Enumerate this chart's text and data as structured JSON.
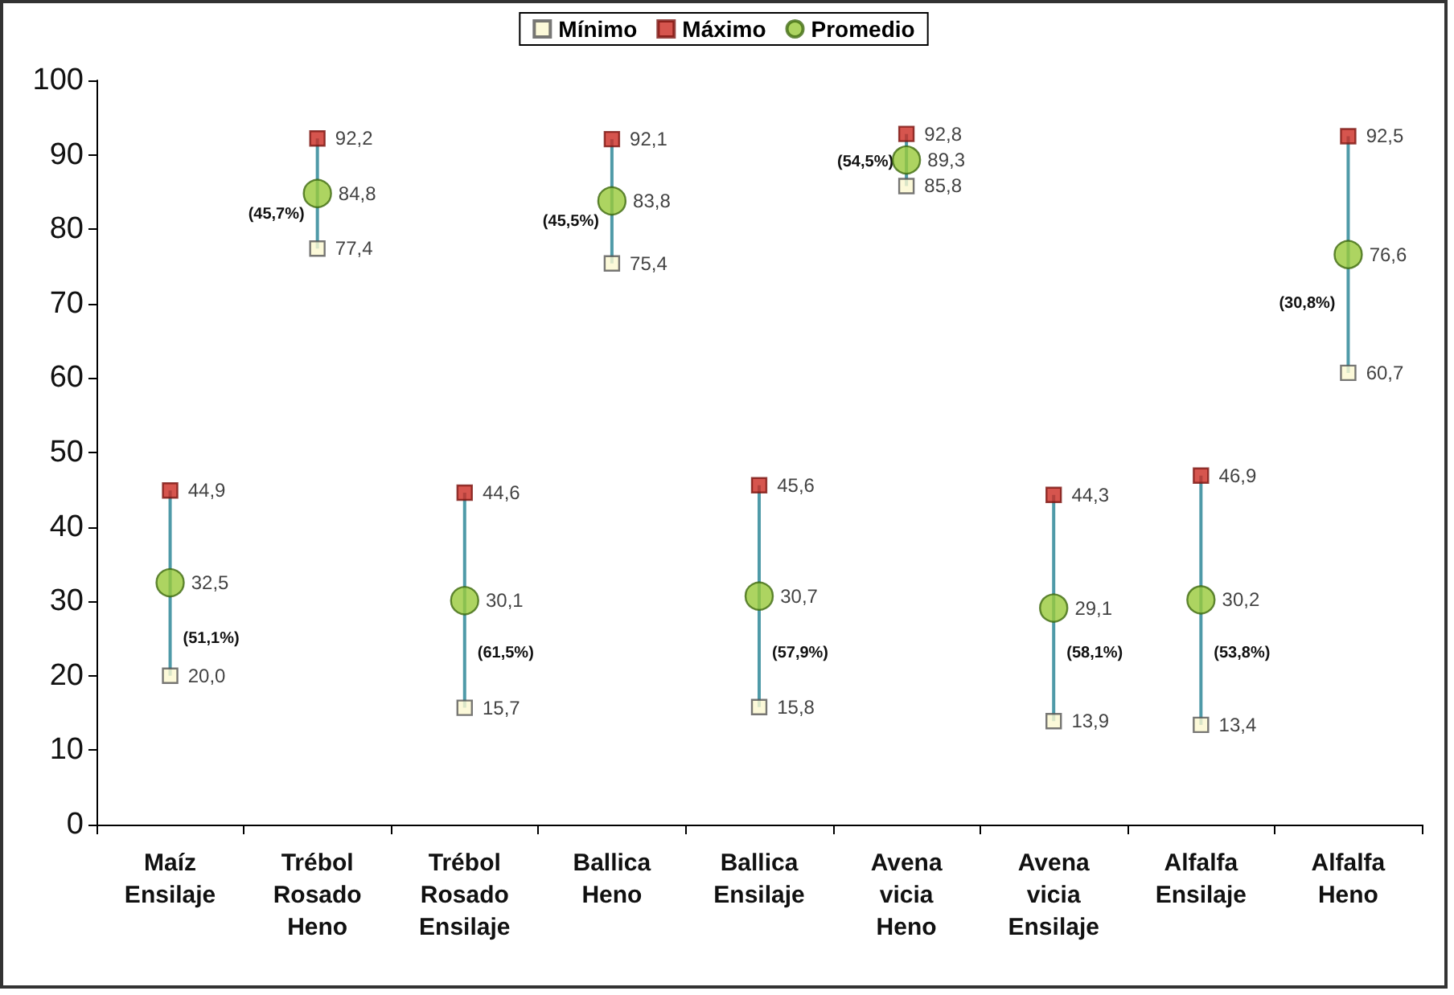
{
  "chart_data": {
    "type": "scatter",
    "categories": [
      "Maíz Ensilaje",
      "Trébol Rosado Heno",
      "Trébol Rosado Ensilaje",
      "Ballica Heno",
      "Ballica Ensilaje",
      "Avena vicia Heno",
      "Avena vicia Ensilaje",
      "Alfalfa Ensilaje",
      "Alfalfa Heno"
    ],
    "series": [
      {
        "type": "line",
        "color": "#4f9aa8",
        "marker": "none",
        "x": [
          "Maíz Ensilaje",
          "Maíz Ensilaje"
        ],
        "values": [
          20.0,
          44.9
        ]
      },
      {
        "type": "line",
        "color": "#4f9aa8",
        "marker": "none",
        "x": [
          "Trébol Rosado Heno",
          "Trébol Rosado Heno"
        ],
        "values": [
          77.4,
          92.2
        ]
      },
      {
        "type": "line",
        "color": "#4f9aa8",
        "marker": "none",
        "x": [
          "Trébol Rosado Ensilaje",
          "Trébol Rosado Ensilaje"
        ],
        "values": [
          15.7,
          44.6
        ]
      },
      {
        "type": "line",
        "color": "#4f9aa8",
        "marker": "none",
        "x": [
          "Ballica Heno",
          "Ballica Heno"
        ],
        "values": [
          75.4,
          92.1
        ]
      },
      {
        "type": "line",
        "color": "#4f9aa8",
        "marker": "none",
        "x": [
          "Ballica Ensilaje",
          "Ballica Ensilaje"
        ],
        "values": [
          15.8,
          45.6
        ]
      },
      {
        "type": "line",
        "color": "#4f9aa8",
        "marker": "none",
        "x": [
          "Avena vicia Heno",
          "Avena vicia Heno"
        ],
        "values": [
          85.8,
          92.8
        ]
      },
      {
        "type": "line",
        "color": "#4f9aa8",
        "marker": "none",
        "x": [
          "Avena vicia Ensilaje",
          "Avena vicia Ensilaje"
        ],
        "values": [
          13.9,
          44.3
        ]
      },
      {
        "type": "line",
        "color": "#4f9aa8",
        "marker": "none",
        "x": [
          "Alfalfa Ensilaje",
          "Alfalfa Ensilaje"
        ],
        "values": [
          13.4,
          46.9
        ]
      },
      {
        "type": "line",
        "color": "#4f9aa8",
        "marker": "none",
        "x": [
          "Alfalfa Heno",
          "Alfalfa Heno"
        ],
        "values": [
          60.7,
          92.5
        ]
      },
      {
        "name": "Mínimo",
        "color": "#fbf7d0",
        "marker": "square",
        "values": [
          20.0,
          77.4,
          15.7,
          75.4,
          15.8,
          85.8,
          13.9,
          13.4,
          60.7
        ],
        "value_labels": [
          "20,0",
          "77,4",
          "15,7",
          "75,4",
          "15,8",
          "85,8",
          "13,9",
          "13,4",
          "60,7"
        ]
      },
      {
        "name": "Máximo",
        "color": "#cc2a22",
        "marker": "square",
        "values": [
          44.9,
          92.2,
          44.6,
          92.1,
          45.6,
          92.8,
          44.3,
          46.9,
          92.5
        ],
        "value_labels": [
          "44,9",
          "92,2",
          "44,6",
          "92,1",
          "45,6",
          "92,8",
          "44,3",
          "46,9",
          "92,5"
        ]
      },
      {
        "name": "Promedio",
        "color": "#99c93a",
        "marker": "circle",
        "values": [
          32.5,
          84.8,
          30.1,
          83.8,
          30.7,
          89.3,
          29.1,
          30.2,
          76.6
        ],
        "value_labels": [
          "32,5",
          "84,8",
          "30,1",
          "83,8",
          "30,7",
          "89,3",
          "29,1",
          "30,2",
          "76,6"
        ]
      }
    ],
    "annotations": [
      {
        "text": "(51,1%)",
        "x": "Maíz Ensilaje",
        "y": 25
      },
      {
        "text": "(45,7%)",
        "x": "Trébol Rosado Heno",
        "y": 82
      },
      {
        "text": "(61,5%)",
        "x": "Trébol Rosado Ensilaje",
        "y": 23
      },
      {
        "text": "(45,5%)",
        "x": "Ballica Heno",
        "y": 81
      },
      {
        "text": "(57,9%)",
        "x": "Ballica Ensilaje",
        "y": 23
      },
      {
        "text": "(54,5%)",
        "x": "Avena vicia Heno",
        "y": 89
      },
      {
        "text": "(58,1%)",
        "x": "Avena vicia Ensilaje",
        "y": 23
      },
      {
        "text": "(53,8%)",
        "x": "Alfalfa Ensilaje",
        "y": 23
      },
      {
        "text": "(30,8%)",
        "x": "Alfalfa Heno",
        "y": 70
      }
    ],
    "ylim": [
      0,
      100
    ],
    "yticks": [
      0,
      10,
      20,
      30,
      40,
      50,
      60,
      70,
      80,
      90,
      100
    ],
    "grid": false,
    "legend": "top"
  }
}
